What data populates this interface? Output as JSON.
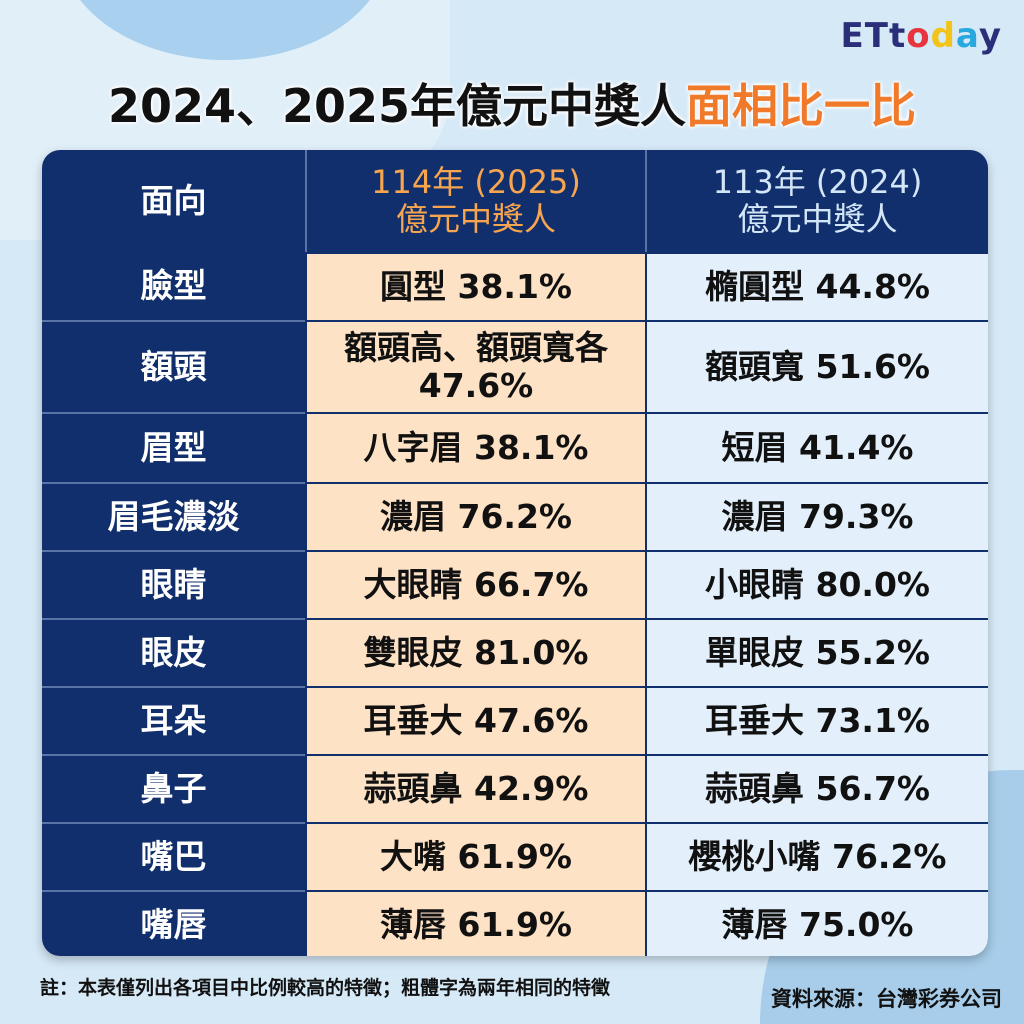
{
  "logo": {
    "text": "ETtoday",
    "colors": {
      "E": "#2b2f7a",
      "T": "#2b2f7a",
      "t": "#2b2f7a",
      "o": "#e8343c",
      "d": "#f2c318",
      "a": "#29a8e0",
      "y": "#2b2f7a"
    }
  },
  "title": {
    "main": "2024、2025年億元中獎人",
    "highlight": "面相比一比"
  },
  "table": {
    "headers": [
      "面向",
      "114年 (2025)\n億元中獎人",
      "113年 (2024)\n億元中獎人"
    ],
    "header_lines": {
      "c1a": "114年 (2025)",
      "c1b": "億元中獎人",
      "c2a": "113年 (2024)",
      "c2b": "億元中獎人"
    },
    "rows": [
      {
        "aspect": "臉型",
        "y2025": "圓型 38.1%",
        "y2024": "橢圓型 44.8%"
      },
      {
        "aspect": "額頭",
        "y2025": "額頭高、額頭寬各 47.6%",
        "y2024": "額頭寬 51.6%"
      },
      {
        "aspect": "眉型",
        "y2025": "八字眉 38.1%",
        "y2024": "短眉 41.4%"
      },
      {
        "aspect": "眉毛濃淡",
        "y2025": "濃眉 76.2%",
        "y2024": "濃眉 79.3%"
      },
      {
        "aspect": "眼睛",
        "y2025": "大眼睛 66.7%",
        "y2024": "小眼睛 80.0%"
      },
      {
        "aspect": "眼皮",
        "y2025": "雙眼皮 81.0%",
        "y2024": "單眼皮 55.2%"
      },
      {
        "aspect": "耳朵",
        "y2025": "耳垂大 47.6%",
        "y2024": "耳垂大 73.1%"
      },
      {
        "aspect": "鼻子",
        "y2025": "蒜頭鼻 42.9%",
        "y2024": "蒜頭鼻 56.7%"
      },
      {
        "aspect": "嘴巴",
        "y2025": "大嘴 61.9%",
        "y2024": "櫻桃小嘴 76.2%"
      },
      {
        "aspect": "嘴唇",
        "y2025": "薄唇 61.9%",
        "y2024": "薄唇 75.0%"
      }
    ]
  },
  "footer": {
    "note": "註：本表僅列出各項目中比例較高的特徵；粗體字為兩年相同的特徵",
    "source": "資料來源：台灣彩券公司"
  }
}
